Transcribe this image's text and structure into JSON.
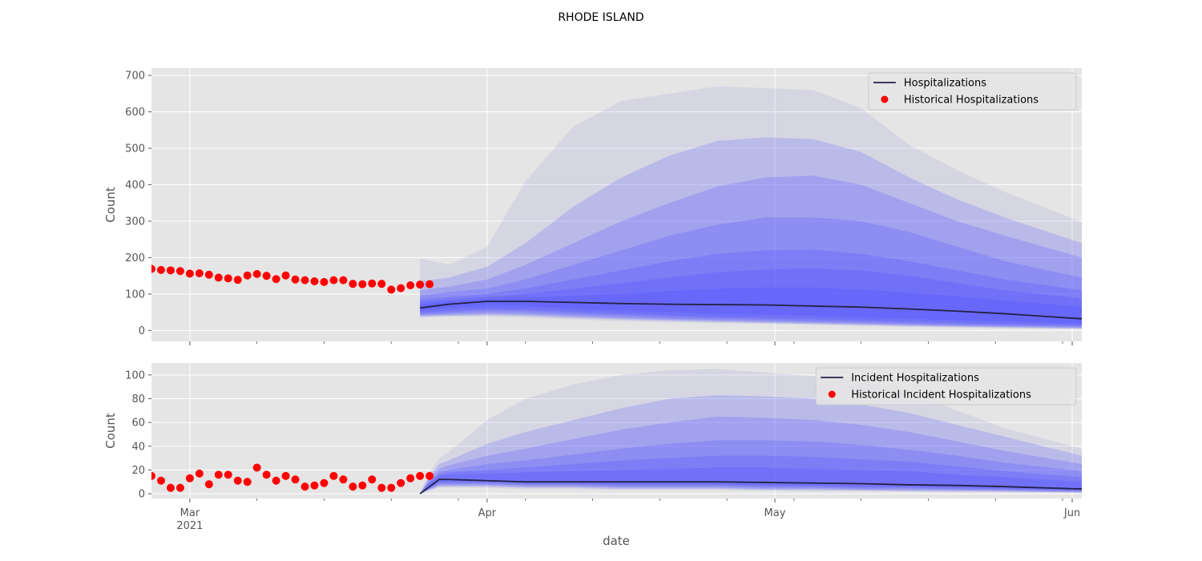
{
  "figure": {
    "title": "RHODE ISLAND",
    "xlabel": "date"
  },
  "colors": {
    "background": "#e5e5e5",
    "grid": "#ffffff",
    "band": "#5555ff",
    "band_outer": "#9999dd",
    "median_line": "#222244",
    "historical": "#ff0000"
  },
  "chart_data": [
    {
      "type": "area",
      "title": "",
      "ylabel": "Count",
      "ylim": [
        -30,
        720
      ],
      "yticks": [
        0,
        100,
        200,
        300,
        400,
        500,
        600,
        700
      ],
      "xaxis": {
        "start": "2021-02-25",
        "end": "2021-06-02",
        "major_ticks": [
          {
            "date": "2021-03-01",
            "label": "Mar",
            "sublabel": "2021"
          },
          {
            "date": "2021-04-01",
            "label": "Apr",
            "sublabel": ""
          },
          {
            "date": "2021-05-01",
            "label": "May",
            "sublabel": ""
          },
          {
            "date": "2021-06-01",
            "label": "Jun",
            "sublabel": ""
          }
        ]
      },
      "legend": {
        "position": "top-right",
        "entries": [
          {
            "label": "Hospitalizations",
            "kind": "line"
          },
          {
            "label": "Historical Hospitalizations",
            "kind": "marker"
          }
        ]
      },
      "historical": {
        "name": "Historical Hospitalizations",
        "start": "2021-02-25",
        "values": [
          169,
          166,
          165,
          163,
          156,
          157,
          153,
          145,
          143,
          139,
          151,
          155,
          150,
          141,
          151,
          140,
          138,
          135,
          133,
          138,
          138,
          128,
          127,
          129,
          128,
          112,
          116,
          124,
          126,
          127
        ]
      },
      "forecast": {
        "name": "Hospitalizations",
        "x": [
          "2021-03-25",
          "2021-03-28",
          "2021-04-01",
          "2021-04-05",
          "2021-04-10",
          "2021-04-15",
          "2021-04-20",
          "2021-04-25",
          "2021-04-30",
          "2021-05-05",
          "2021-05-10",
          "2021-05-15",
          "2021-05-20",
          "2021-05-25",
          "2021-06-02"
        ],
        "median": [
          62,
          72,
          80,
          80,
          77,
          74,
          72,
          71,
          70,
          67,
          64,
          59,
          53,
          46,
          32
        ],
        "bands": [
          {
            "upper": [
              198,
              180,
              230,
              410,
              560,
              630,
              650,
              670,
              665,
              660,
              610,
              510,
              440,
              380,
              298
            ],
            "lower": [
              35,
              38,
              38,
              35,
              30,
              25,
              22,
              20,
              18,
              15,
              12,
              10,
              8,
              6,
              4
            ]
          },
          {
            "upper": [
              135,
              145,
              175,
              240,
              340,
              420,
              480,
              520,
              530,
              525,
              490,
              420,
              360,
              310,
              240
            ],
            "lower": [
              38,
              40,
              42,
              40,
              34,
              30,
              26,
              23,
              20,
              18,
              15,
              12,
              10,
              8,
              5
            ]
          },
          {
            "upper": [
              110,
              120,
              140,
              180,
              240,
              300,
              350,
              395,
              420,
              425,
              400,
              350,
              300,
              260,
              200
            ],
            "lower": [
              40,
              43,
              45,
              43,
              38,
              33,
              29,
              26,
              23,
              20,
              17,
              14,
              12,
              10,
              7
            ]
          },
          {
            "upper": [
              95,
              105,
              115,
              140,
              180,
              220,
              260,
              290,
              310,
              310,
              300,
              270,
              230,
              190,
              145
            ],
            "lower": [
              43,
              46,
              50,
              48,
              42,
              37,
              32,
              29,
              26,
              23,
              20,
              17,
              14,
              12,
              9
            ]
          },
          {
            "upper": [
              85,
              92,
              100,
              115,
              140,
              165,
              190,
              210,
              220,
              222,
              210,
              190,
              165,
              140,
              110
            ],
            "lower": [
              46,
              50,
              55,
              53,
              47,
              42,
              37,
              33,
              30,
              27,
              24,
              20,
              17,
              15,
              12
            ]
          },
          {
            "upper": [
              78,
              85,
              92,
              100,
              115,
              130,
              145,
              160,
              168,
              170,
              165,
              150,
              130,
              110,
              88
            ],
            "lower": [
              50,
              55,
              60,
              58,
              52,
              47,
              42,
              38,
              35,
              32,
              28,
              25,
              21,
              18,
              15
            ]
          },
          {
            "upper": [
              72,
              80,
              87,
              90,
              95,
              100,
              108,
              115,
              118,
              118,
              112,
              104,
              94,
              82,
              65
            ],
            "lower": [
              55,
              62,
              68,
              66,
              60,
              55,
              50,
              46,
              43,
              40,
              36,
              32,
              28,
              24,
              19
            ]
          }
        ]
      }
    },
    {
      "type": "area",
      "title": "",
      "ylabel": "Count",
      "ylim": [
        -4,
        110
      ],
      "yticks": [
        0,
        20,
        40,
        60,
        80,
        100
      ],
      "xaxis": {
        "start": "2021-02-25",
        "end": "2021-06-02",
        "major_ticks": [
          {
            "date": "2021-03-01",
            "label": "Mar",
            "sublabel": "2021"
          },
          {
            "date": "2021-04-01",
            "label": "Apr",
            "sublabel": ""
          },
          {
            "date": "2021-05-01",
            "label": "May",
            "sublabel": ""
          },
          {
            "date": "2021-06-01",
            "label": "Jun",
            "sublabel": ""
          }
        ]
      },
      "legend": {
        "position": "top-right",
        "entries": [
          {
            "label": "Incident Hospitalizations",
            "kind": "line"
          },
          {
            "label": "Historical Incident Hospitalizations",
            "kind": "marker"
          }
        ]
      },
      "historical": {
        "name": "Historical Incident Hospitalizations",
        "start": "2021-02-25",
        "values": [
          15,
          11,
          5,
          5,
          13,
          17,
          8,
          16,
          16,
          11,
          10,
          22,
          16,
          11,
          15,
          12,
          6,
          7,
          9,
          15,
          12,
          6,
          7,
          12,
          5,
          5,
          9,
          13,
          15,
          15
        ]
      },
      "forecast": {
        "name": "Incident Hospitalizations",
        "x": [
          "2021-03-25",
          "2021-03-26",
          "2021-03-27",
          "2021-03-28",
          "2021-04-01",
          "2021-04-05",
          "2021-04-10",
          "2021-04-15",
          "2021-04-20",
          "2021-04-25",
          "2021-04-30",
          "2021-05-05",
          "2021-05-10",
          "2021-05-15",
          "2021-05-20",
          "2021-05-25",
          "2021-06-02"
        ],
        "median": [
          0,
          6,
          12,
          12,
          11,
          10,
          10,
          10,
          10,
          10,
          9.5,
          9,
          8.5,
          7.5,
          7,
          6,
          4
        ],
        "bands": [
          {
            "upper": [
              0,
              18,
              30,
              35,
              62,
              80,
              92,
              100,
              104,
              105,
              102,
              99,
              95,
              86,
              70,
              55,
              38
            ],
            "lower": [
              0,
              3,
              5,
              5,
              5,
              4,
              4,
              3,
              3,
              3,
              3,
              2,
              2,
              2,
              1,
              1,
              1
            ]
          },
          {
            "upper": [
              0,
              15,
              25,
              28,
              42,
              52,
              62,
              72,
              80,
              83,
              82,
              80,
              75,
              68,
              58,
              48,
              32
            ],
            "lower": [
              0,
              3,
              6,
              6,
              6,
              5,
              5,
              4,
              4,
              4,
              3,
              3,
              3,
              2,
              2,
              2,
              1
            ]
          },
          {
            "upper": [
              0,
              13,
              21,
              24,
              32,
              38,
              46,
              54,
              60,
              65,
              64,
              62,
              58,
              52,
              44,
              36,
              25
            ],
            "lower": [
              0,
              4,
              7,
              7,
              7,
              6,
              6,
              5,
              5,
              5,
              4,
              4,
              3,
              3,
              3,
              2,
              1
            ]
          },
          {
            "upper": [
              0,
              11,
              18,
              20,
              25,
              28,
              33,
              38,
              42,
              45,
              45,
              44,
              41,
              37,
              32,
              26,
              19
            ],
            "lower": [
              0,
              4,
              8,
              8,
              8,
              7,
              7,
              6,
              6,
              6,
              5,
              5,
              4,
              4,
              3,
              3,
              2
            ]
          },
          {
            "upper": [
              0,
              10,
              16,
              18,
              20,
              22,
              25,
              28,
              30,
              32,
              32,
              31,
              29,
              27,
              23,
              19,
              14
            ],
            "lower": [
              0,
              5,
              9,
              9,
              9,
              8,
              8,
              7,
              7,
              7,
              6,
              6,
              5,
              5,
              4,
              4,
              2
            ]
          },
          {
            "upper": [
              0,
              9,
              15,
              16,
              17,
              18,
              19,
              20,
              21,
              22,
              22,
              21,
              20,
              19,
              16,
              14,
              10
            ],
            "lower": [
              0,
              5,
              10,
              10,
              10,
              9,
              9,
              8,
              8,
              8,
              7,
              7,
              6,
              6,
              5,
              4,
              3
            ]
          }
        ]
      }
    }
  ]
}
